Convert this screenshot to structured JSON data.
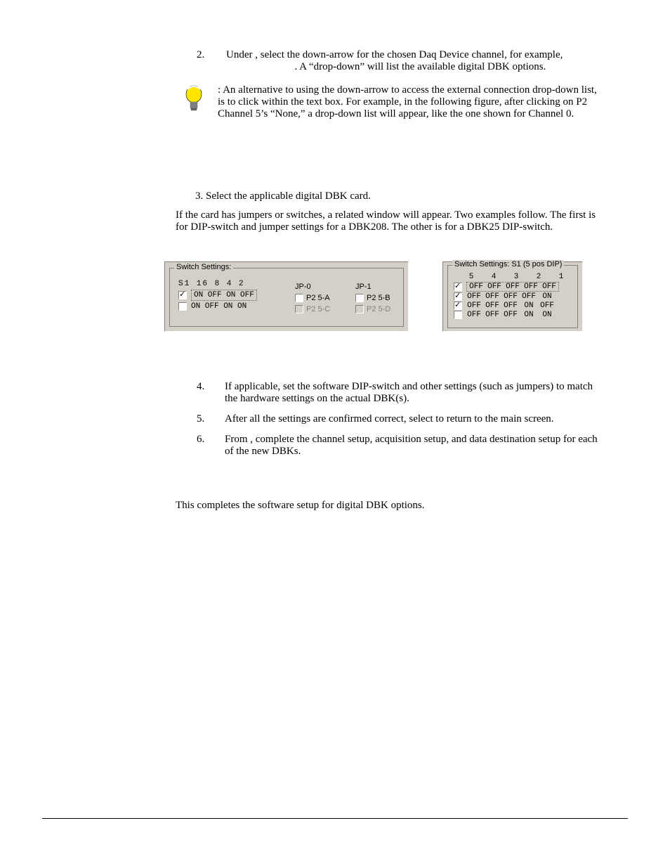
{
  "step2": {
    "num": "2.",
    "text": "Under                                        , select the                   down-arrow for the chosen Daq Device channel, for example,                           .  A “drop-down” will list the available digital DBK options."
  },
  "note": ": An alternative to using the                   down-arrow to access the external connection drop-down list, is to click within the text box.  For example, in the following figure, after clicking on P2 Channel 5’s “None,” a drop-down list will appear, like the one shown for Channel 0.",
  "step3": "3. Select the applicable digital DBK card.",
  "bodyPara": "If the card has jumpers or switches, a related window will appear.  Two examples follow.  The first is for DIP-switch and jumper settings for a DBK208.  The other is for a DBK25 DIP-switch.",
  "panel208": {
    "legend": "Switch Settings:",
    "hdr": "S1   16    8    4    2",
    "row1": "ON   OFF  ON   OFF",
    "row2": "ON   OFF  ON   ON ",
    "jp0": "JP-0",
    "jp1": "JP-1",
    "p25a": "P2 5-A",
    "p25b": "P2 5-B",
    "p25c": "P2 5-C",
    "p25d": "P2 5-D"
  },
  "panel25": {
    "legend": "Switch Settings: S1 (5 pos DIP)",
    "cols": [
      "5",
      "4",
      "3",
      "2",
      "1"
    ],
    "rows": [
      {
        "checked": true,
        "dotted": true,
        "cells": [
          "OFF",
          "OFF",
          "OFF",
          "OFF",
          "OFF"
        ]
      },
      {
        "checked": true,
        "dotted": false,
        "cells": [
          "OFF",
          "OFF",
          "OFF",
          "OFF",
          "ON"
        ]
      },
      {
        "checked": true,
        "dotted": false,
        "cells": [
          "OFF",
          "OFF",
          "OFF",
          "ON",
          "OFF"
        ]
      },
      {
        "checked": false,
        "dotted": false,
        "cells": [
          "OFF",
          "OFF",
          "OFF",
          "ON",
          "ON"
        ]
      }
    ]
  },
  "step4": {
    "num": "4.",
    "text": "If applicable, set the software DIP-switch and other settings (such as jumpers) to match the hardware settings on the actual DBK(s)."
  },
  "step5": {
    "num": "5.",
    "text": "After all the settings are confirmed correct, select          to return to the                  main screen."
  },
  "step6": {
    "num": "6.",
    "text": "From                  , complete the channel setup, acquisition setup, and data destination setup for each of the new DBKs."
  },
  "final": "This completes the software setup for digital DBK options."
}
